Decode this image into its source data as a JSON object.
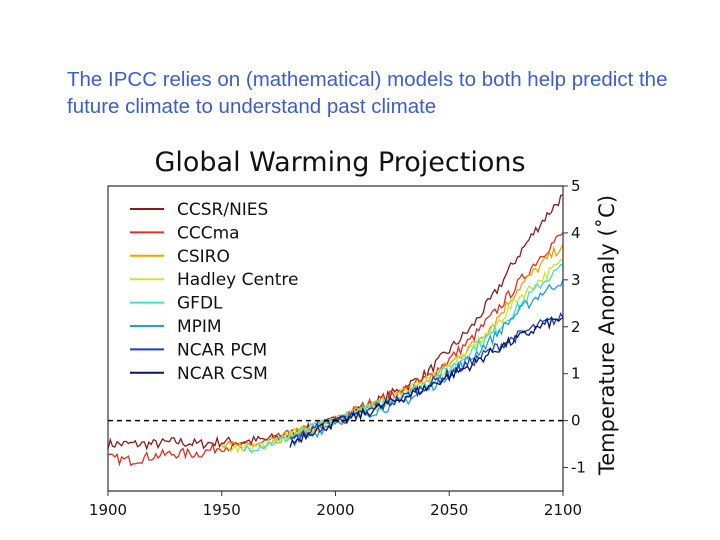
{
  "slide": {
    "text": "The IPCC relies on (mathematical) models to both help predict the future climate to understand past climate"
  },
  "chart_data": {
    "type": "line",
    "title": "Global Warming Projections",
    "xlabel": "",
    "ylabel": "Temperature Anomaly (˚C)",
    "xlim": [
      1900,
      2100
    ],
    "ylim": [
      -1.5,
      5
    ],
    "xticks": [
      1900,
      1950,
      2000,
      2050,
      2100
    ],
    "yticks": [
      -1,
      0,
      1,
      2,
      3,
      4,
      5
    ],
    "y_axis_side": "right",
    "reference_line": {
      "y": 0,
      "style": "dashed"
    },
    "grid": false,
    "legend_position": "top-left",
    "x": [
      1900,
      1910,
      1920,
      1930,
      1940,
      1950,
      1960,
      1970,
      1980,
      1990,
      2000,
      2010,
      2020,
      2030,
      2040,
      2050,
      2060,
      2070,
      2080,
      2090,
      2100
    ],
    "series": [
      {
        "name": "CCSR/NIES",
        "color": "#8b1a1a",
        "values": [
          -0.5,
          -0.5,
          -0.5,
          -0.45,
          -0.5,
          -0.45,
          -0.45,
          -0.4,
          -0.3,
          -0.15,
          0,
          0.25,
          0.45,
          0.7,
          1.0,
          1.5,
          2.0,
          2.7,
          3.5,
          4.2,
          4.8
        ]
      },
      {
        "name": "CCCma",
        "color": "#e0301e",
        "values": [
          -0.8,
          -0.85,
          -0.75,
          -0.7,
          -0.7,
          -0.55,
          -0.55,
          -0.45,
          -0.3,
          -0.15,
          0,
          0.25,
          0.45,
          0.65,
          0.9,
          1.3,
          1.75,
          2.3,
          2.9,
          3.5,
          4.0
        ]
      },
      {
        "name": "CSIRO",
        "color": "#f5a000",
        "values": [
          null,
          null,
          null,
          null,
          null,
          -0.55,
          -0.55,
          -0.45,
          -0.3,
          -0.15,
          0,
          0.2,
          0.4,
          0.6,
          0.85,
          1.2,
          1.6,
          2.1,
          2.8,
          3.3,
          3.75
        ]
      },
      {
        "name": "Hadley Centre",
        "color": "#c8e632",
        "values": [
          null,
          null,
          null,
          null,
          null,
          -0.6,
          -0.6,
          -0.5,
          -0.3,
          -0.15,
          0,
          0.15,
          0.35,
          0.6,
          0.85,
          1.15,
          1.55,
          2.0,
          2.6,
          3.0,
          3.4
        ]
      },
      {
        "name": "GFDL",
        "color": "#40e0d0",
        "values": [
          null,
          null,
          null,
          null,
          null,
          null,
          -0.6,
          -0.5,
          -0.35,
          -0.15,
          0,
          0.2,
          0.35,
          0.55,
          0.8,
          1.1,
          1.5,
          1.9,
          2.4,
          2.9,
          3.3
        ]
      },
      {
        "name": "MPIM",
        "color": "#1ea0dc",
        "values": [
          null,
          null,
          null,
          null,
          null,
          null,
          null,
          null,
          -0.45,
          -0.3,
          0,
          0.1,
          0.25,
          0.4,
          0.65,
          1.0,
          1.35,
          1.8,
          2.3,
          2.7,
          3.0
        ]
      },
      {
        "name": "NCAR PCM",
        "color": "#1a3ccc",
        "values": [
          null,
          null,
          null,
          null,
          null,
          null,
          null,
          null,
          -0.45,
          -0.2,
          0,
          0.1,
          0.3,
          0.5,
          0.75,
          1.0,
          1.25,
          1.55,
          1.8,
          2.05,
          2.2
        ]
      },
      {
        "name": "NCAR CSM",
        "color": "#0a1464",
        "values": [
          null,
          null,
          null,
          null,
          null,
          null,
          null,
          null,
          -0.5,
          -0.2,
          -0.05,
          0.1,
          0.3,
          0.5,
          0.7,
          0.95,
          1.2,
          1.5,
          1.75,
          2.0,
          2.2
        ]
      }
    ]
  }
}
